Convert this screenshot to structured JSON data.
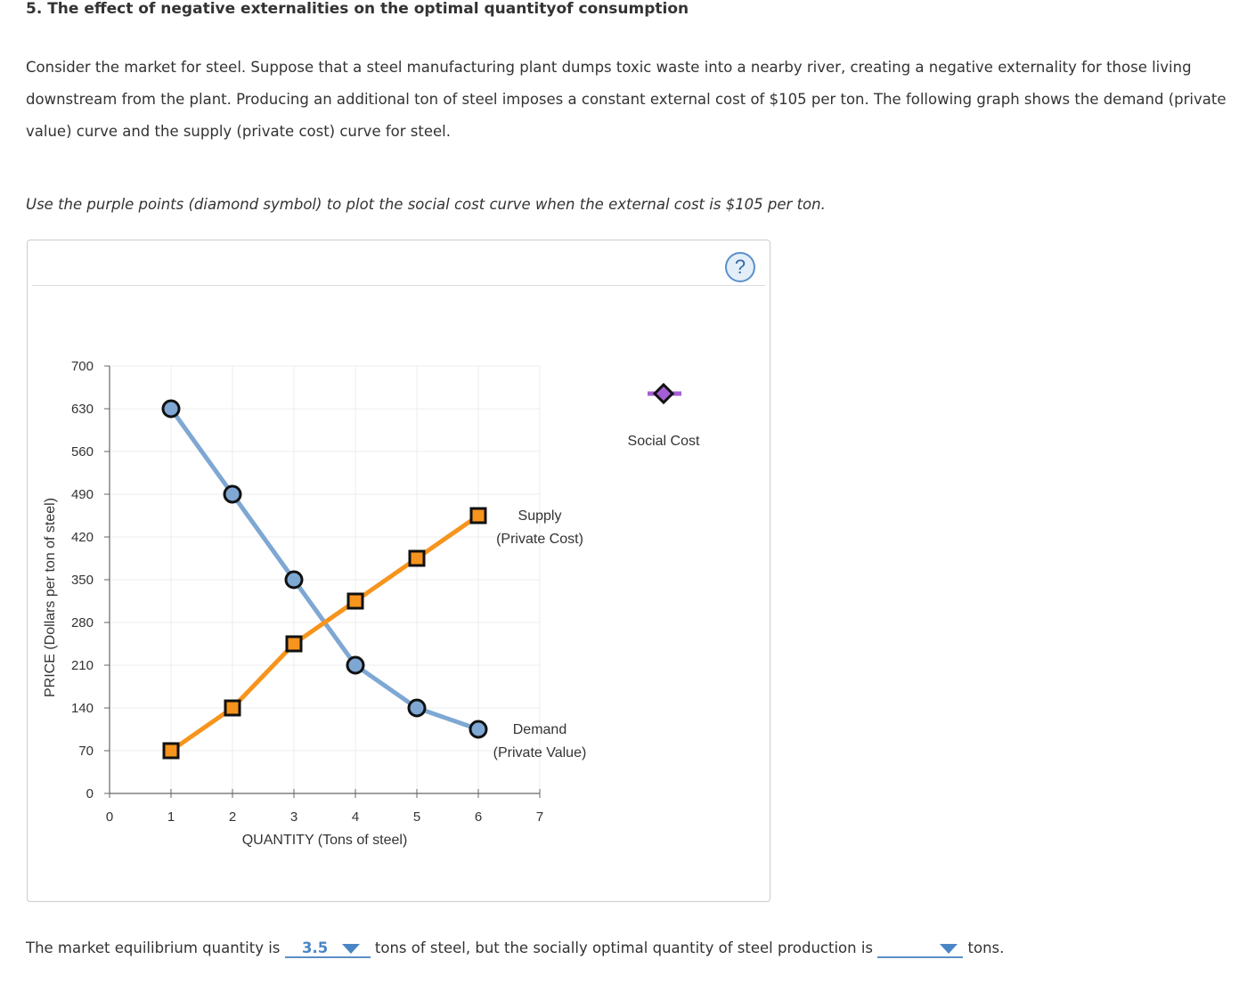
{
  "question": {
    "title": "5. The effect of negative externalities on the optimal quantityof consumption",
    "paragraph": "Consider the market for steel. Suppose that a steel manufacturing plant dumps toxic waste into a nearby river, creating a negative externality for those living downstream from the plant. Producing an additional ton of steel imposes a constant external cost of $105 per ton. The following graph shows the demand (private value) curve and the supply (private cost) curve for steel.",
    "instruction": "Use the purple points (diamond symbol) to plot the social cost curve when the external cost is $105 per ton."
  },
  "panel": {
    "help_icon": "?"
  },
  "chart_data": {
    "type": "line",
    "xlabel": "QUANTITY (Tons of steel)",
    "ylabel": "PRICE (Dollars per ton of steel)",
    "xlim": [
      0,
      7
    ],
    "ylim": [
      0,
      700
    ],
    "x_ticks": [
      "0",
      "1",
      "2",
      "3",
      "4",
      "5",
      "6",
      "7"
    ],
    "y_ticks": [
      "0",
      "70",
      "140",
      "210",
      "280",
      "350",
      "420",
      "490",
      "560",
      "630",
      "700"
    ],
    "grid": true,
    "series": [
      {
        "name": "Demand (Private Value)",
        "label_line1": "Demand",
        "label_line2": "(Private Value)",
        "marker": "circle",
        "color": "#7ea8d3",
        "x": [
          1,
          2,
          3,
          4,
          5,
          6
        ],
        "values": [
          630,
          490,
          350,
          210,
          140,
          105
        ]
      },
      {
        "name": "Supply (Private Cost)",
        "label_line1": "Supply",
        "label_line2": "(Private Cost)",
        "marker": "square",
        "color": "#f7941d",
        "x": [
          1,
          2,
          3,
          4,
          5,
          6
        ],
        "values": [
          70,
          140,
          245,
          315,
          385,
          455
        ]
      }
    ],
    "palette_tools": [
      {
        "name": "Social Cost",
        "marker": "diamond",
        "color": "#a55fd6"
      }
    ]
  },
  "answer": {
    "prefix": "The market equilibrium quantity is",
    "dropdown1_value": "3.5",
    "middle": "tons of steel, but the socially optimal quantity of steel production is",
    "dropdown2_value": "",
    "suffix": "tons."
  }
}
